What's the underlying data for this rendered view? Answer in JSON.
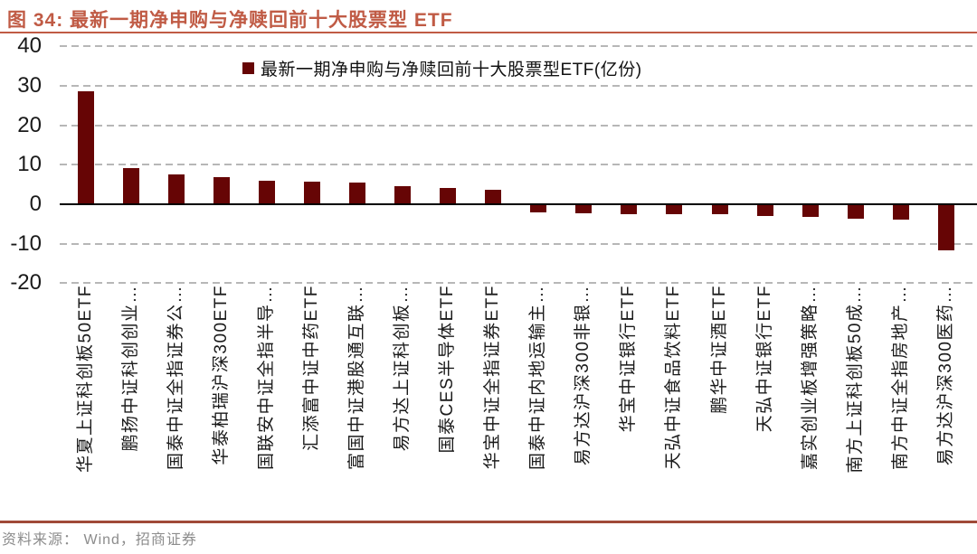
{
  "figure": {
    "title_prefix": "图 34:",
    "title_text": "最新一期净申购与净赎回前十大股票型 ETF",
    "source_label": "资料来源：",
    "source_text": "Wind，招商证券"
  },
  "colors": {
    "bar": "#660505",
    "title": "#c05b45",
    "title_rule": "#c05b45",
    "footer_rule": "#a04a38",
    "gridline": "#b7b7b7",
    "zero_axis": "#000000",
    "source_text": "#8c8c8c"
  },
  "chart_data": {
    "type": "bar",
    "title": "最新一期净申购与净赎回前十大股票型 ETF",
    "legend": "最新一期净申购与净赎回前十大股票型ETF(亿份)",
    "legend_position": "top-center",
    "grid": "horizontal-dashed",
    "ylabel": "亿份",
    "ylim": [
      -20,
      40
    ],
    "yticks": [
      40,
      30,
      20,
      10,
      0,
      -10,
      -20
    ],
    "categories": [
      "华夏上证科创板50ETF",
      "鹏扬中证科创创业…",
      "国泰中证全指证券公…",
      "华泰柏瑞沪深300ETF",
      "国联安中证全指半导…",
      "汇添富中证中药ETF",
      "富国中证港股通互联…",
      "易方达上证科创板…",
      "国泰CES半导体ETF",
      "华宝中证全指证券ETF",
      "国泰中证内地运输主…",
      "易方达沪深300非银…",
      "华宝中证银行ETF",
      "天弘中证食品饮料ETF",
      "鹏华中证酒ETF",
      "天弘中证银行ETF",
      "嘉实创业板增强策略…",
      "南方上证科创板50成…",
      "南方中证全指房地产…",
      "易方达沪深300医药…"
    ],
    "values": [
      28.6,
      9.1,
      7.6,
      6.8,
      6.0,
      5.7,
      5.4,
      4.6,
      4.2,
      3.7,
      -2.0,
      -2.2,
      -2.4,
      -2.4,
      -2.5,
      -3.0,
      -3.3,
      -3.7,
      -3.9,
      -11.7
    ]
  }
}
